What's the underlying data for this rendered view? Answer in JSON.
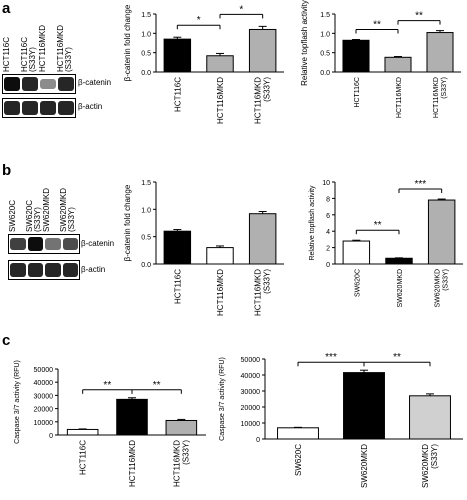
{
  "panels": {
    "a": {
      "letter": "a"
    },
    "b": {
      "letter": "b"
    },
    "c": {
      "letter": "c"
    }
  },
  "blots": {
    "a": {
      "lanes": [
        "HCT116C",
        "HCT116C (S33Y)",
        "HCT116MKD",
        "HCT116MKD (S33Y)"
      ],
      "rows": [
        "β-catenin",
        "β-actin"
      ],
      "catenin_intensity": [
        0.95,
        0.85,
        0.45,
        0.85
      ],
      "actin_intensity": [
        0.85,
        0.85,
        0.85,
        0.85
      ]
    },
    "b": {
      "lanes": [
        "SW620C",
        "SW620C (S33Y)",
        "SW620MKD",
        "SW620MKD (S33Y)"
      ],
      "rows": [
        "β-catenin",
        "β-actin"
      ],
      "catenin_intensity": [
        0.75,
        0.95,
        0.55,
        0.7
      ],
      "actin_intensity": [
        0.85,
        0.85,
        0.85,
        0.85
      ]
    }
  },
  "chart_data": [
    {
      "id": "a1",
      "type": "bar",
      "ylabel": "β-catenin fold change",
      "categories": [
        "HCT116C",
        "HCT116MKD",
        "HCT116MKD (S33Y)"
      ],
      "values": [
        0.85,
        0.42,
        1.1
      ],
      "errors": [
        0.05,
        0.06,
        0.08
      ],
      "fills": [
        "#000000",
        "#b0b0b0",
        "#b0b0b0"
      ],
      "ylim": [
        0,
        1.5
      ],
      "yticks": [
        "0.0",
        "0.5",
        "1.0",
        "1.5"
      ],
      "ytick_values": [
        0,
        0.5,
        1,
        1.5
      ],
      "significance": [
        {
          "from": 0,
          "to": 1,
          "label": "*"
        },
        {
          "from": 1,
          "to": 2,
          "label": "*"
        }
      ]
    },
    {
      "id": "a2",
      "type": "bar",
      "ylabel": "Relative topflash activity",
      "categories": [
        "HCT116C",
        "HCT116MKD",
        "HCT116MKD (S33Y)"
      ],
      "values": [
        0.82,
        0.38,
        1.02
      ],
      "errors": [
        0.02,
        0.02,
        0.05
      ],
      "fills": [
        "#000000",
        "#b0b0b0",
        "#b0b0b0"
      ],
      "ylim": [
        0,
        1.5
      ],
      "yticks": [
        "0.0",
        "0.5",
        "1.0",
        "1.5"
      ],
      "ytick_values": [
        0,
        0.5,
        1,
        1.5
      ],
      "significance": [
        {
          "from": 0,
          "to": 1,
          "label": "**"
        },
        {
          "from": 1,
          "to": 2,
          "label": "**"
        }
      ]
    },
    {
      "id": "b1",
      "type": "bar",
      "ylabel": "β-catenin fold change",
      "categories": [
        "HCT116C",
        "HCT116MKD",
        "HCT116MKD (S33Y)"
      ],
      "values": [
        0.6,
        0.3,
        0.92
      ],
      "errors": [
        0.03,
        0.03,
        0.04
      ],
      "fills": [
        "#000000",
        "#ffffff",
        "#b0b0b0"
      ],
      "ylim": [
        0,
        1.5
      ],
      "yticks": [
        "0.0",
        "0.5",
        "1.0",
        "1.5"
      ],
      "ytick_values": [
        0,
        0.5,
        1,
        1.5
      ],
      "significance": []
    },
    {
      "id": "b2",
      "type": "bar",
      "ylabel": "Relative topflash activity",
      "categories": [
        "SW620C",
        "SW620MKD",
        "SW620MKD (S33Y)"
      ],
      "values": [
        2.8,
        0.7,
        7.8
      ],
      "errors": [
        0.1,
        0.05,
        0.12
      ],
      "fills": [
        "#ffffff",
        "#000000",
        "#b0b0b0"
      ],
      "ylim": [
        0,
        10
      ],
      "yticks": [
        "0",
        "2",
        "4",
        "6",
        "8",
        "10"
      ],
      "ytick_values": [
        0,
        2,
        4,
        6,
        8,
        10
      ],
      "significance": [
        {
          "from": 0,
          "to": 1,
          "label": "**"
        },
        {
          "from": 1,
          "to": 2,
          "label": "***"
        }
      ]
    },
    {
      "id": "c1",
      "type": "bar",
      "ylabel": "Caspase 3/7 activity (RFU)",
      "categories": [
        "HCT116C",
        "HCT116MKD",
        "HCT116MKD (S33Y)"
      ],
      "values": [
        4200,
        27000,
        11000
      ],
      "errors": [
        400,
        1200,
        800
      ],
      "fills": [
        "#ffffff",
        "#000000",
        "#b0b0b0"
      ],
      "ylim": [
        0,
        50000
      ],
      "yticks": [
        "0",
        "10000",
        "20000",
        "30000",
        "40000",
        "50000"
      ],
      "ytick_values": [
        0,
        10000,
        20000,
        30000,
        40000,
        50000
      ],
      "significance": [
        {
          "from": 0,
          "to": 1,
          "label": "**"
        },
        {
          "from": 1,
          "to": 2,
          "label": "**"
        }
      ]
    },
    {
      "id": "c2",
      "type": "bar",
      "ylabel": "Caspase 3/7 activity (RFU)",
      "categories": [
        "SW620C",
        "SW620MKD",
        "SW620MKD (S33Y)"
      ],
      "values": [
        7000,
        41500,
        27000
      ],
      "errors": [
        300,
        1500,
        1200
      ],
      "fills": [
        "#ffffff",
        "#000000",
        "#d0d0d0"
      ],
      "ylim": [
        0,
        50000
      ],
      "yticks": [
        "0",
        "10000",
        "20000",
        "30000",
        "40000",
        "50000"
      ],
      "ytick_values": [
        0,
        10000,
        20000,
        30000,
        40000,
        50000
      ],
      "significance": [
        {
          "from": 0,
          "to": 1,
          "label": "***"
        },
        {
          "from": 1,
          "to": 2,
          "label": "**"
        }
      ]
    }
  ]
}
